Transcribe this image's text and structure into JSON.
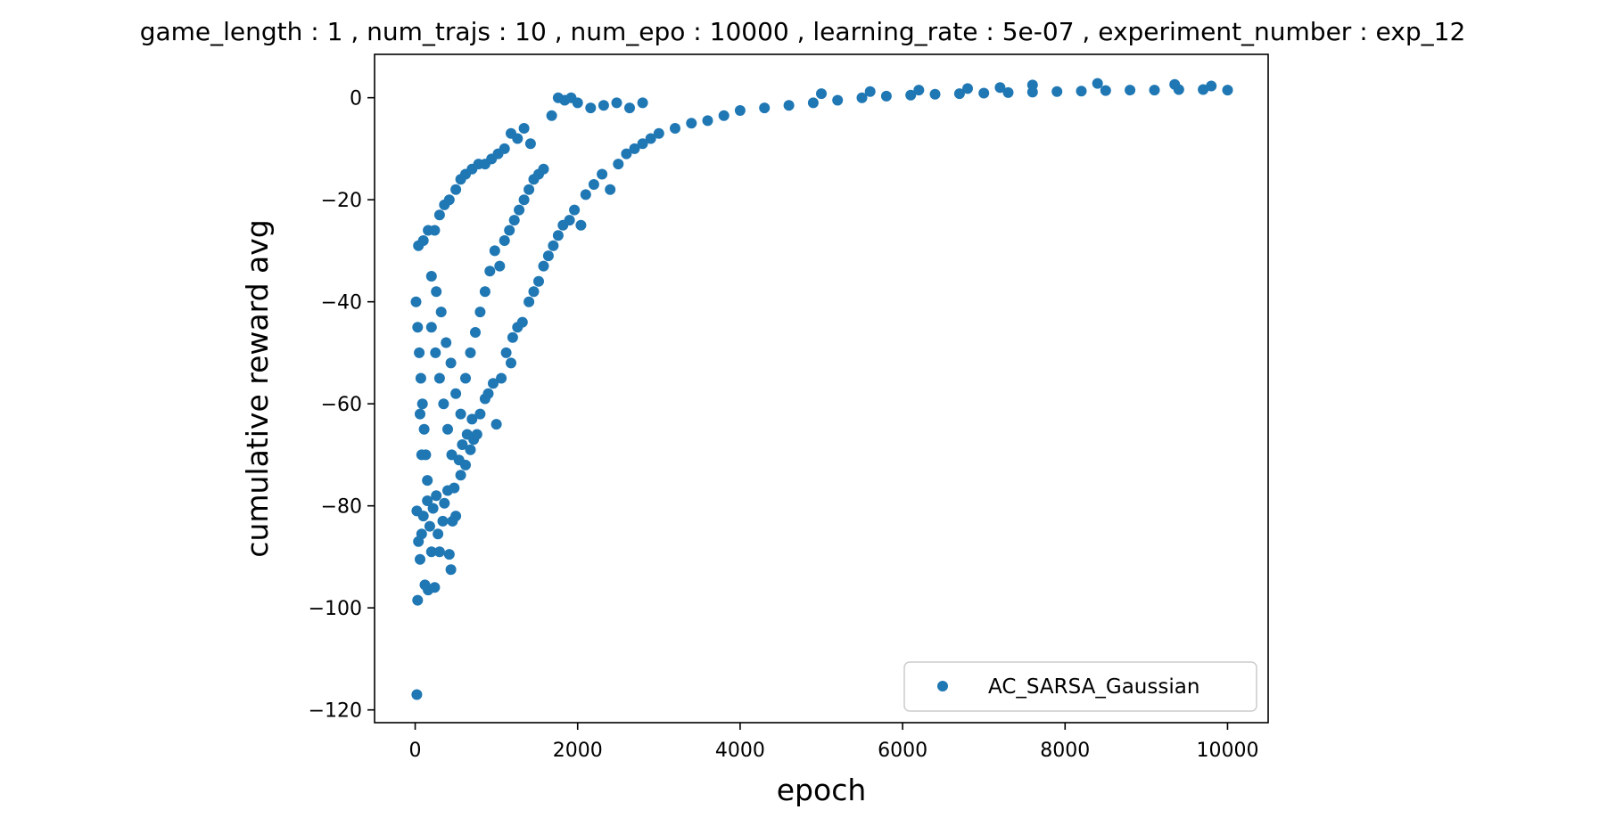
{
  "chart_data": {
    "type": "scatter",
    "title": "game_length : 1 , num_trajs : 10 , num_epo : 10000 , learning_rate : 5e-07 , experiment_number : exp_12",
    "xlabel": "epoch",
    "ylabel": "cumulative reward avg",
    "xlim": [
      -500,
      10500
    ],
    "ylim": [
      -122.5,
      8.5
    ],
    "xticks": [
      0,
      2000,
      4000,
      6000,
      8000,
      10000
    ],
    "xtick_labels": [
      "0",
      "2000",
      "4000",
      "6000",
      "8000",
      "10000"
    ],
    "yticks": [
      0,
      -20,
      -40,
      -60,
      -80,
      -100,
      -120
    ],
    "ytick_labels": [
      "0",
      "−20",
      "−40",
      "−60",
      "−80",
      "−100",
      "−120"
    ],
    "grid": false,
    "legend_position": "lower right",
    "series": [
      {
        "name": "AC_SARSA_Gaussian",
        "color": "#1f77b4",
        "marker": "circle",
        "points": [
          [
            20,
            -117
          ],
          [
            30,
            -98.5
          ],
          [
            160,
            -96.5
          ],
          [
            240,
            -96
          ],
          [
            120,
            -95.5
          ],
          [
            60,
            -90.5
          ],
          [
            200,
            -89
          ],
          [
            300,
            -89
          ],
          [
            420,
            -89.5
          ],
          [
            440,
            -92.5
          ],
          [
            40,
            -87
          ],
          [
            80,
            -85.5
          ],
          [
            180,
            -84
          ],
          [
            280,
            -85.5
          ],
          [
            340,
            -83
          ],
          [
            500,
            -82
          ],
          [
            460,
            -83
          ],
          [
            20,
            -81
          ],
          [
            100,
            -82
          ],
          [
            220,
            -80.5
          ],
          [
            150,
            -79
          ],
          [
            260,
            -78
          ],
          [
            360,
            -79.5
          ],
          [
            400,
            -77
          ],
          [
            480,
            -76.5
          ],
          [
            560,
            -74
          ],
          [
            620,
            -72
          ],
          [
            680,
            -69
          ],
          [
            720,
            -67
          ],
          [
            760,
            -66
          ],
          [
            540,
            -71
          ],
          [
            580,
            -68
          ],
          [
            640,
            -66
          ],
          [
            700,
            -63
          ],
          [
            800,
            -62
          ],
          [
            860,
            -59
          ],
          [
            900,
            -58
          ],
          [
            960,
            -56
          ],
          [
            1000,
            -64
          ],
          [
            1180,
            -52
          ],
          [
            1060,
            -55
          ],
          [
            1120,
            -50
          ],
          [
            1200,
            -47
          ],
          [
            1260,
            -45
          ],
          [
            1320,
            -44
          ],
          [
            1400,
            -40
          ],
          [
            1460,
            -38
          ],
          [
            1520,
            -36
          ],
          [
            1580,
            -33
          ],
          [
            1640,
            -31
          ],
          [
            1700,
            -29
          ],
          [
            1760,
            -27
          ],
          [
            1820,
            -25
          ],
          [
            1900,
            -24
          ],
          [
            1960,
            -22
          ],
          [
            2040,
            -25
          ],
          [
            2100,
            -19
          ],
          [
            2200,
            -17
          ],
          [
            2300,
            -15
          ],
          [
            2400,
            -18
          ],
          [
            2500,
            -13
          ],
          [
            2600,
            -11
          ],
          [
            2700,
            -10
          ],
          [
            2800,
            -9
          ],
          [
            2900,
            -8
          ],
          [
            3000,
            -7
          ],
          [
            3200,
            -6
          ],
          [
            3400,
            -5
          ],
          [
            3600,
            -4.5
          ],
          [
            3800,
            -3.5
          ],
          [
            1760,
            0
          ],
          [
            1840,
            -0.5
          ],
          [
            1920,
            0
          ],
          [
            1680,
            -3.5
          ],
          [
            2000,
            -1
          ],
          [
            2160,
            -2
          ],
          [
            2320,
            -1.5
          ],
          [
            2480,
            -1
          ],
          [
            2640,
            -2
          ],
          [
            2800,
            -1
          ],
          [
            40,
            -29
          ],
          [
            100,
            -28
          ],
          [
            160,
            -26
          ],
          [
            240,
            -26
          ],
          [
            300,
            -23
          ],
          [
            360,
            -21
          ],
          [
            420,
            -20
          ],
          [
            500,
            -18
          ],
          [
            560,
            -16
          ],
          [
            620,
            -15
          ],
          [
            700,
            -14
          ],
          [
            780,
            -13
          ],
          [
            860,
            -13
          ],
          [
            940,
            -12
          ],
          [
            1020,
            -11
          ],
          [
            1100,
            -10
          ],
          [
            1180,
            -7
          ],
          [
            1260,
            -8
          ],
          [
            1340,
            -6
          ],
          [
            1420,
            -9
          ],
          [
            10,
            -40
          ],
          [
            30,
            -45
          ],
          [
            50,
            -50
          ],
          [
            70,
            -55
          ],
          [
            90,
            -60
          ],
          [
            110,
            -65
          ],
          [
            130,
            -70
          ],
          [
            150,
            -75
          ],
          [
            60,
            -62
          ],
          [
            80,
            -70
          ],
          [
            200,
            -45
          ],
          [
            250,
            -50
          ],
          [
            300,
            -55
          ],
          [
            350,
            -60
          ],
          [
            400,
            -65
          ],
          [
            450,
            -70
          ],
          [
            200,
            -35
          ],
          [
            260,
            -38
          ],
          [
            320,
            -42
          ],
          [
            380,
            -48
          ],
          [
            440,
            -52
          ],
          [
            500,
            -58
          ],
          [
            560,
            -62
          ],
          [
            620,
            -55
          ],
          [
            680,
            -50
          ],
          [
            740,
            -46
          ],
          [
            800,
            -42
          ],
          [
            860,
            -38
          ],
          [
            920,
            -34
          ],
          [
            980,
            -30
          ],
          [
            1040,
            -33
          ],
          [
            1100,
            -28
          ],
          [
            1160,
            -26
          ],
          [
            1220,
            -24
          ],
          [
            1280,
            -22
          ],
          [
            1340,
            -20
          ],
          [
            1400,
            -18
          ],
          [
            1460,
            -16
          ],
          [
            1520,
            -15
          ],
          [
            1580,
            -14
          ],
          [
            4000,
            -2.5
          ],
          [
            4300,
            -2
          ],
          [
            4600,
            -1.5
          ],
          [
            4900,
            -1
          ],
          [
            5200,
            -0.5
          ],
          [
            5500,
            0
          ],
          [
            5800,
            0.3
          ],
          [
            6100,
            0.5
          ],
          [
            6400,
            0.7
          ],
          [
            6700,
            0.8
          ],
          [
            7000,
            0.9
          ],
          [
            7300,
            1
          ],
          [
            7600,
            1.1
          ],
          [
            7900,
            1.2
          ],
          [
            8200,
            1.3
          ],
          [
            8500,
            1.4
          ],
          [
            8800,
            1.5
          ],
          [
            9100,
            1.5
          ],
          [
            9400,
            1.6
          ],
          [
            9700,
            1.6
          ],
          [
            10000,
            1.5
          ],
          [
            7600,
            2.5
          ],
          [
            8400,
            2.8
          ],
          [
            9350,
            2.6
          ],
          [
            9800,
            2.3
          ],
          [
            5000,
            0.8
          ],
          [
            5600,
            1.2
          ],
          [
            6200,
            1.5
          ],
          [
            6800,
            1.8
          ],
          [
            7200,
            2
          ]
        ]
      }
    ]
  }
}
